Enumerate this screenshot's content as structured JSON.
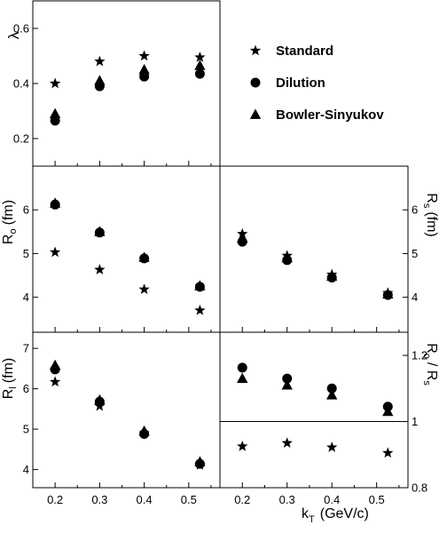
{
  "legend": {
    "position": "top-right",
    "items": [
      {
        "label": "Standard",
        "marker": "star"
      },
      {
        "label": "Dilution",
        "marker": "circle"
      },
      {
        "label": "Bowler-Sinyukov",
        "marker": "triangle"
      }
    ]
  },
  "x_label": "k",
  "x_label_sub": "T",
  "x_label_unit": "(GeV/c)",
  "chart_data": [
    {
      "id": "lambda",
      "type": "scatter",
      "ylabel": "λ",
      "xlim": [
        0.15,
        0.57
      ],
      "ylim": [
        0.1,
        0.7
      ],
      "yticks": [
        0.2,
        0.4,
        0.6
      ],
      "x": [
        0.2,
        0.3,
        0.4,
        0.525
      ],
      "series": [
        {
          "name": "Standard",
          "marker": "star",
          "values": [
            0.4,
            0.48,
            0.5,
            0.495
          ]
        },
        {
          "name": "Dilution",
          "marker": "circle",
          "values": [
            0.265,
            0.39,
            0.425,
            0.435
          ]
        },
        {
          "name": "Bowler-Sinyukov",
          "marker": "triangle",
          "values": [
            0.29,
            0.41,
            0.45,
            0.465
          ]
        }
      ]
    },
    {
      "id": "ro",
      "type": "scatter",
      "ylabel": "R",
      "ylabel_sub": "o",
      "ylabel_unit": "(fm)",
      "xlim": [
        0.15,
        0.57
      ],
      "ylim": [
        3.2,
        7.0
      ],
      "yticks": [
        4,
        5,
        6
      ],
      "x": [
        0.2,
        0.3,
        0.4,
        0.525
      ],
      "series": [
        {
          "name": "Standard",
          "marker": "star",
          "values": [
            5.03,
            4.63,
            4.18,
            3.7
          ]
        },
        {
          "name": "Dilution",
          "marker": "circle",
          "values": [
            6.12,
            5.48,
            4.89,
            4.24
          ]
        },
        {
          "name": "Bowler-Sinyukov",
          "marker": "triangle",
          "values": [
            6.15,
            5.5,
            4.91,
            4.26
          ]
        }
      ]
    },
    {
      "id": "rs",
      "type": "scatter",
      "ylabel": "R",
      "ylabel_sub": "s",
      "ylabel_unit": "(fm)",
      "xlim": [
        0.15,
        0.57
      ],
      "ylim": [
        3.2,
        7.0
      ],
      "yticks": [
        4,
        5,
        6
      ],
      "x": [
        0.2,
        0.3,
        0.4,
        0.525
      ],
      "series": [
        {
          "name": "Standard",
          "marker": "star",
          "values": [
            5.45,
            4.95,
            4.52,
            4.1
          ]
        },
        {
          "name": "Dilution",
          "marker": "circle",
          "values": [
            5.27,
            4.85,
            4.45,
            4.05
          ]
        },
        {
          "name": "Bowler-Sinyukov",
          "marker": "triangle",
          "values": [
            5.35,
            4.9,
            4.48,
            4.07
          ]
        }
      ]
    },
    {
      "id": "rl",
      "type": "scatter",
      "ylabel": "R",
      "ylabel_sub": "l",
      "ylabel_unit": "(fm)",
      "xlim": [
        0.15,
        0.57
      ],
      "ylim": [
        3.55,
        7.4
      ],
      "yticks": [
        4,
        5,
        6,
        7
      ],
      "xticks": [
        0.2,
        0.3,
        0.4,
        0.5
      ],
      "x": [
        0.2,
        0.3,
        0.4,
        0.525
      ],
      "series": [
        {
          "name": "Standard",
          "marker": "star",
          "values": [
            6.17,
            5.57,
            4.9,
            4.11
          ]
        },
        {
          "name": "Dilution",
          "marker": "circle",
          "values": [
            6.48,
            5.68,
            4.88,
            4.14
          ]
        },
        {
          "name": "Bowler-Sinyukov",
          "marker": "triangle",
          "values": [
            6.58,
            5.72,
            4.95,
            4.19
          ]
        }
      ]
    },
    {
      "id": "ratio",
      "type": "scatter",
      "ylabel": "R",
      "ylabel_sub": "o",
      "ylabel_unit": "/ R",
      "ylabel_sub2": "s",
      "xlim": [
        0.15,
        0.57
      ],
      "ylim": [
        0.8,
        1.27
      ],
      "yticks": [
        0.8,
        1,
        1.2
      ],
      "ytick_labels": [
        "0.8",
        "1",
        "1.2"
      ],
      "xticks": [
        0.2,
        0.3,
        0.4,
        0.5
      ],
      "reference_line": 1.0,
      "x": [
        0.2,
        0.3,
        0.4,
        0.525
      ],
      "series": [
        {
          "name": "Standard",
          "marker": "star",
          "values": [
            0.925,
            0.935,
            0.922,
            0.905
          ]
        },
        {
          "name": "Dilution",
          "marker": "circle",
          "values": [
            1.163,
            1.13,
            1.1,
            1.045
          ]
        },
        {
          "name": "Bowler-Sinyukov",
          "marker": "triangle",
          "values": [
            1.13,
            1.11,
            1.08,
            1.03
          ]
        }
      ]
    }
  ]
}
